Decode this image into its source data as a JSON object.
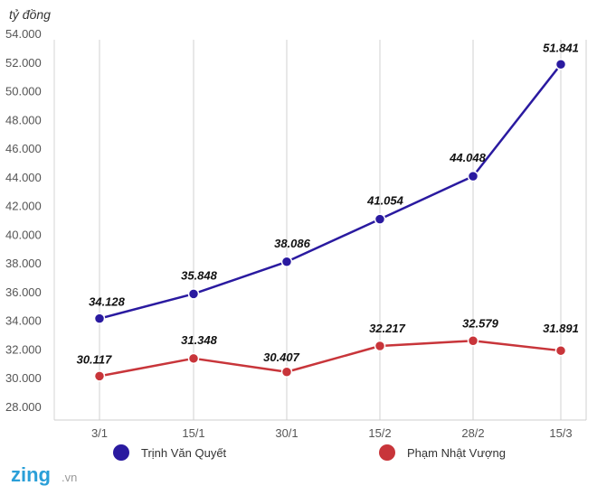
{
  "chart_data": {
    "type": "line",
    "unit_label": "tỷ đồng",
    "categories": [
      "3/1",
      "15/1",
      "30/1",
      "15/2",
      "28/2",
      "15/3"
    ],
    "y_ticks": [
      "54.000",
      "52.000",
      "50.000",
      "48.000",
      "46.000",
      "44.000",
      "42.000",
      "40.000",
      "38.000",
      "36.000",
      "34.000",
      "32.000",
      "30.000",
      "28.000"
    ],
    "ylim": [
      28000,
      54000
    ],
    "grid": {
      "vertical": true,
      "horizontal": false
    },
    "legend_position": "bottom",
    "series": [
      {
        "name": "Trịnh Văn Quyết",
        "color": "#2a1aa0",
        "values": [
          34128,
          35848,
          38086,
          41054,
          44048,
          51841
        ],
        "labels": [
          "34.128",
          "35.848",
          "38.086",
          "41.054",
          "44.048",
          "51.841"
        ]
      },
      {
        "name": "Phạm Nhật Vượng",
        "color": "#c8353a",
        "values": [
          30117,
          31348,
          30407,
          32217,
          32579,
          31891
        ],
        "labels": [
          "30.117",
          "31.348",
          "30.407",
          "32.217",
          "32.579",
          "31.891"
        ]
      }
    ]
  },
  "logo": {
    "main": "zing",
    "suffix": ".vn"
  }
}
